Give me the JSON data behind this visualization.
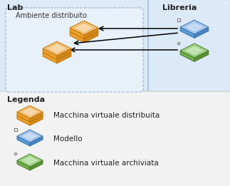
{
  "lab_label": "Lab",
  "libreria_label": "Libreria",
  "ambiente_label": "Ambiente distribuito",
  "legenda_label": "Legenda",
  "legend_items": [
    {
      "label": "Macchina virtuale distribuita",
      "type": "orange"
    },
    {
      "label": "Modello",
      "type": "blue"
    },
    {
      "label": "Macchina virtuale archiviata",
      "type": "green"
    }
  ],
  "bg_color": "#ffffff",
  "lab_box_color": "#dce9f7",
  "lib_box_color": "#dce9f7",
  "amb_box_color": "#e8f0fa",
  "legend_box_color": "#f2f2f2",
  "orange_top": "#f5c27a",
  "orange_left": "#e8a030",
  "orange_right": "#d08820",
  "orange_edge": "#c87800",
  "blue_top": "#a8c8f0",
  "blue_left": "#5b9bd5",
  "blue_right": "#4a85c0",
  "blue_edge": "#3a75b0",
  "green_top": "#a0d888",
  "green_left": "#70ad47",
  "green_right": "#5a9035",
  "green_edge": "#4a7a28"
}
